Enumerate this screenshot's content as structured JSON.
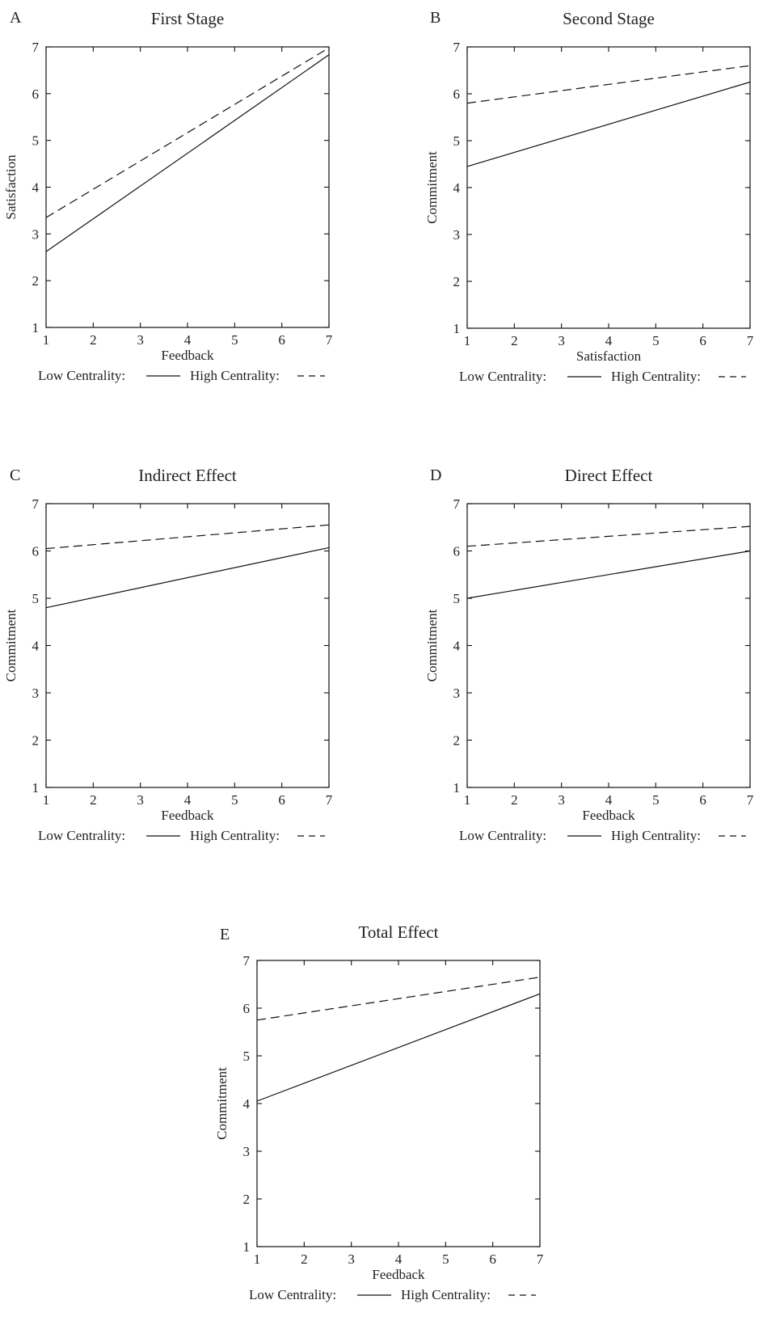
{
  "chart_data": [
    {
      "letter": "A",
      "type": "line",
      "title": "First Stage",
      "xlabel": "Feedback",
      "ylabel": "Satisfaction",
      "xlim": [
        1,
        7
      ],
      "ylim": [
        1,
        7
      ],
      "xticks": [
        1,
        2,
        3,
        4,
        5,
        6,
        7
      ],
      "yticks": [
        1,
        2,
        3,
        4,
        5,
        6,
        7
      ],
      "series": [
        {
          "name": "Low Centrality",
          "style": "solid",
          "x": [
            1,
            7
          ],
          "y": [
            2.62,
            6.83
          ]
        },
        {
          "name": "High Centrality",
          "style": "dashed",
          "x": [
            1,
            7
          ],
          "y": [
            3.35,
            6.98
          ]
        }
      ],
      "legend": {
        "low_label": "Low Centrality:",
        "high_label": "High Centrality:",
        "position": "below"
      }
    },
    {
      "letter": "B",
      "type": "line",
      "title": "Second Stage",
      "xlabel": "Satisfaction",
      "ylabel": "Commitment",
      "xlim": [
        1,
        7
      ],
      "ylim": [
        1,
        7
      ],
      "xticks": [
        1,
        2,
        3,
        4,
        5,
        6,
        7
      ],
      "yticks": [
        1,
        2,
        3,
        4,
        5,
        6,
        7
      ],
      "series": [
        {
          "name": "Low Centrality",
          "style": "solid",
          "x": [
            1,
            7
          ],
          "y": [
            4.45,
            6.25
          ]
        },
        {
          "name": "High Centrality",
          "style": "dashed",
          "x": [
            1,
            7
          ],
          "y": [
            5.8,
            6.6
          ]
        }
      ],
      "legend": {
        "low_label": "Low Centrality:",
        "high_label": "High Centrality:",
        "position": "below"
      }
    },
    {
      "letter": "C",
      "type": "line",
      "title": "Indirect Effect",
      "xlabel": "Feedback",
      "ylabel": "Commitment",
      "xlim": [
        1,
        7
      ],
      "ylim": [
        1,
        7
      ],
      "xticks": [
        1,
        2,
        3,
        4,
        5,
        6,
        7
      ],
      "yticks": [
        1,
        2,
        3,
        4,
        5,
        6,
        7
      ],
      "series": [
        {
          "name": "Low Centrality",
          "style": "solid",
          "x": [
            1,
            7
          ],
          "y": [
            4.8,
            6.07
          ]
        },
        {
          "name": "High Centrality",
          "style": "dashed",
          "x": [
            1,
            7
          ],
          "y": [
            6.05,
            6.55
          ]
        }
      ],
      "legend": {
        "low_label": "Low Centrality:",
        "high_label": "High Centrality:",
        "position": "below"
      }
    },
    {
      "letter": "D",
      "type": "line",
      "title": "Direct Effect",
      "xlabel": "Feedback",
      "ylabel": "Commitment",
      "xlim": [
        1,
        7
      ],
      "ylim": [
        1,
        7
      ],
      "xticks": [
        1,
        2,
        3,
        4,
        5,
        6,
        7
      ],
      "yticks": [
        1,
        2,
        3,
        4,
        5,
        6,
        7
      ],
      "series": [
        {
          "name": "Low Centrality",
          "style": "solid",
          "x": [
            1,
            7
          ],
          "y": [
            5.0,
            6.0
          ]
        },
        {
          "name": "High Centrality",
          "style": "dashed",
          "x": [
            1,
            7
          ],
          "y": [
            6.1,
            6.52
          ]
        }
      ],
      "legend": {
        "low_label": "Low Centrality:",
        "high_label": "High Centrality:",
        "position": "below"
      }
    },
    {
      "letter": "E",
      "type": "line",
      "title": "Total Effect",
      "xlabel": "Feedback",
      "ylabel": "Commitment",
      "xlim": [
        1,
        7
      ],
      "ylim": [
        1,
        7
      ],
      "xticks": [
        1,
        2,
        3,
        4,
        5,
        6,
        7
      ],
      "yticks": [
        1,
        2,
        3,
        4,
        5,
        6,
        7
      ],
      "series": [
        {
          "name": "Low Centrality",
          "style": "solid",
          "x": [
            1,
            7
          ],
          "y": [
            4.05,
            6.3
          ]
        },
        {
          "name": "High Centrality",
          "style": "dashed",
          "x": [
            1,
            7
          ],
          "y": [
            5.75,
            6.65
          ]
        }
      ],
      "legend": {
        "low_label": "Low Centrality:",
        "high_label": "High Centrality:",
        "position": "below"
      }
    }
  ]
}
